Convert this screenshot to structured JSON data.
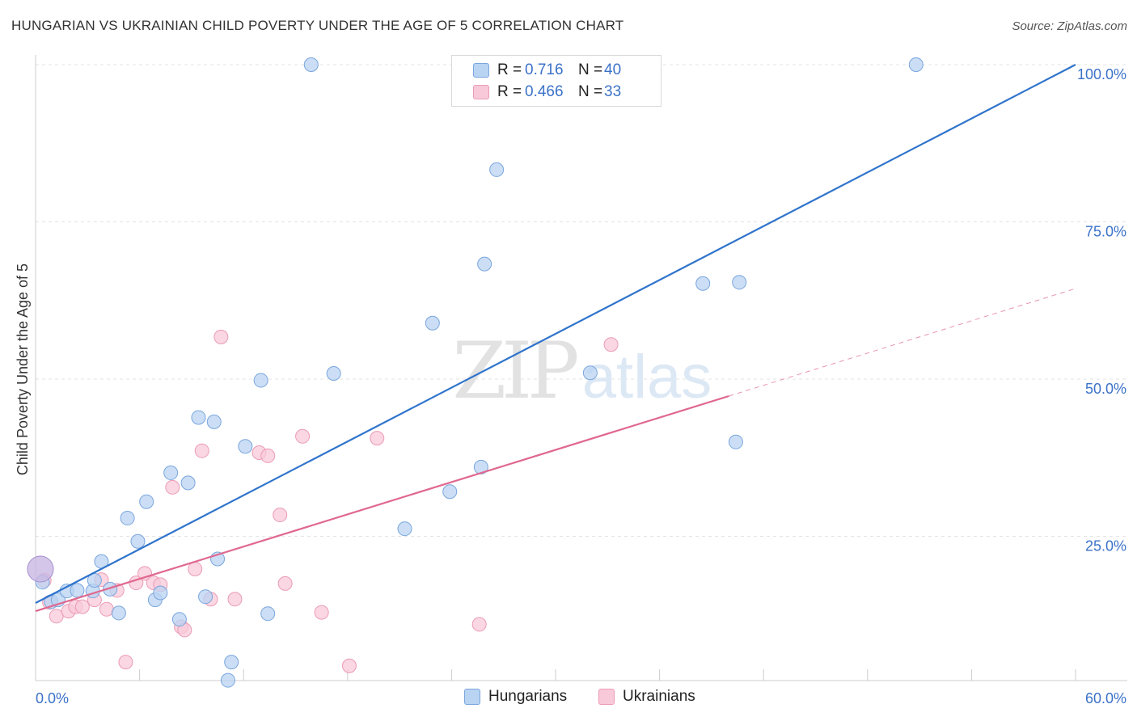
{
  "header": {
    "title": "HUNGARIAN VS UKRAINIAN CHILD POVERTY UNDER THE AGE OF 5 CORRELATION CHART",
    "source": "Source: ZipAtlas.com"
  },
  "watermark": {
    "zip": "ZIP",
    "atlas": "atlas"
  },
  "legend_top": {
    "rows": [
      {
        "r_label": "R =",
        "r_value": "0.716",
        "n_label": "N =",
        "n_value": "40"
      },
      {
        "r_label": "R =",
        "r_value": "0.466",
        "n_label": "N =",
        "n_value": "33"
      }
    ]
  },
  "legend_bottom": {
    "items": [
      "Hungarians",
      "Ukrainians"
    ]
  },
  "colors": {
    "hungarians_fill": "#b9d3f2",
    "hungarians_stroke": "#7aa6dd",
    "hungarians_line": "#2f74cc",
    "ukrainians_fill": "#f8c9d8",
    "ukrainians_stroke": "#eb9bb6",
    "ukrainians_line": "#e0688f",
    "axis_label": "#3b72c8",
    "grid": "#e3e3e3"
  },
  "chart_data": {
    "type": "scatter",
    "title": "HUNGARIAN VS UKRAINIAN CHILD POVERTY UNDER THE AGE OF 5 CORRELATION CHART",
    "xlabel": "",
    "ylabel": "Child Poverty Under the Age of 5",
    "xlim": [
      0,
      60
    ],
    "ylim": [
      0,
      100
    ],
    "x_tick_labels": [
      "0.0%",
      "60.0%"
    ],
    "y_ticks": [
      25,
      50,
      75,
      100
    ],
    "y_tick_labels": [
      "25.0%",
      "50.0%",
      "75.0%",
      "100.0%"
    ],
    "grid": true,
    "legend_position": "top-center",
    "series": [
      {
        "name": "Hungarians",
        "r": 0.716,
        "n": 40,
        "trendline": {
          "x0": 0,
          "y0": 14.4,
          "x1": 60,
          "y1": 100,
          "solid_until": 60
        },
        "points": [
          [
            0.4,
            17.7
          ],
          [
            0.9,
            14.6
          ],
          [
            1.3,
            14.9
          ],
          [
            1.8,
            16.3
          ],
          [
            2.4,
            16.4
          ],
          [
            3.3,
            16.3
          ],
          [
            3.4,
            18.0
          ],
          [
            3.8,
            21.0
          ],
          [
            4.3,
            16.6
          ],
          [
            4.8,
            12.8
          ],
          [
            5.3,
            27.9
          ],
          [
            5.9,
            24.2
          ],
          [
            6.4,
            30.5
          ],
          [
            6.9,
            14.9
          ],
          [
            7.2,
            16.0
          ],
          [
            7.8,
            35.1
          ],
          [
            8.3,
            11.8
          ],
          [
            8.8,
            33.5
          ],
          [
            9.4,
            43.9
          ],
          [
            9.8,
            15.4
          ],
          [
            10.3,
            43.2
          ],
          [
            10.5,
            21.4
          ],
          [
            11.1,
            2.1
          ],
          [
            11.3,
            5.0
          ],
          [
            12.1,
            39.3
          ],
          [
            13.0,
            49.8
          ],
          [
            13.4,
            12.7
          ],
          [
            15.9,
            100.0
          ],
          [
            17.2,
            50.9
          ],
          [
            21.3,
            26.2
          ],
          [
            22.9,
            58.9
          ],
          [
            23.9,
            32.1
          ],
          [
            25.7,
            36.0
          ],
          [
            25.9,
            68.3
          ],
          [
            26.6,
            83.3
          ],
          [
            32.0,
            51.0
          ],
          [
            38.5,
            65.2
          ],
          [
            40.4,
            40.0
          ],
          [
            40.6,
            65.4
          ],
          [
            50.8,
            100.0
          ]
        ]
      },
      {
        "name": "Ukrainians",
        "r": 0.466,
        "n": 33,
        "trendline": {
          "x0": 0,
          "y0": 13.1,
          "x1": 60,
          "y1": 64.4,
          "solid_until": 40
        },
        "points": [
          [
            0.5,
            18.0
          ],
          [
            0.8,
            14.5
          ],
          [
            1.2,
            12.3
          ],
          [
            1.9,
            13.1
          ],
          [
            2.3,
            13.8
          ],
          [
            2.7,
            13.8
          ],
          [
            3.4,
            14.9
          ],
          [
            3.8,
            18.1
          ],
          [
            4.1,
            13.4
          ],
          [
            4.7,
            16.4
          ],
          [
            5.2,
            5.0
          ],
          [
            5.8,
            17.6
          ],
          [
            6.3,
            19.1
          ],
          [
            6.8,
            17.6
          ],
          [
            7.2,
            17.3
          ],
          [
            7.9,
            32.8
          ],
          [
            8.4,
            10.6
          ],
          [
            8.6,
            10.1
          ],
          [
            9.2,
            19.8
          ],
          [
            9.6,
            38.6
          ],
          [
            10.1,
            15.0
          ],
          [
            10.7,
            56.7
          ],
          [
            11.5,
            15.0
          ],
          [
            12.9,
            38.3
          ],
          [
            13.4,
            37.8
          ],
          [
            14.1,
            28.4
          ],
          [
            14.4,
            17.5
          ],
          [
            15.4,
            40.9
          ],
          [
            16.5,
            12.9
          ],
          [
            18.1,
            4.4
          ],
          [
            19.7,
            40.6
          ],
          [
            25.6,
            11.0
          ],
          [
            33.2,
            55.5
          ]
        ]
      }
    ]
  }
}
